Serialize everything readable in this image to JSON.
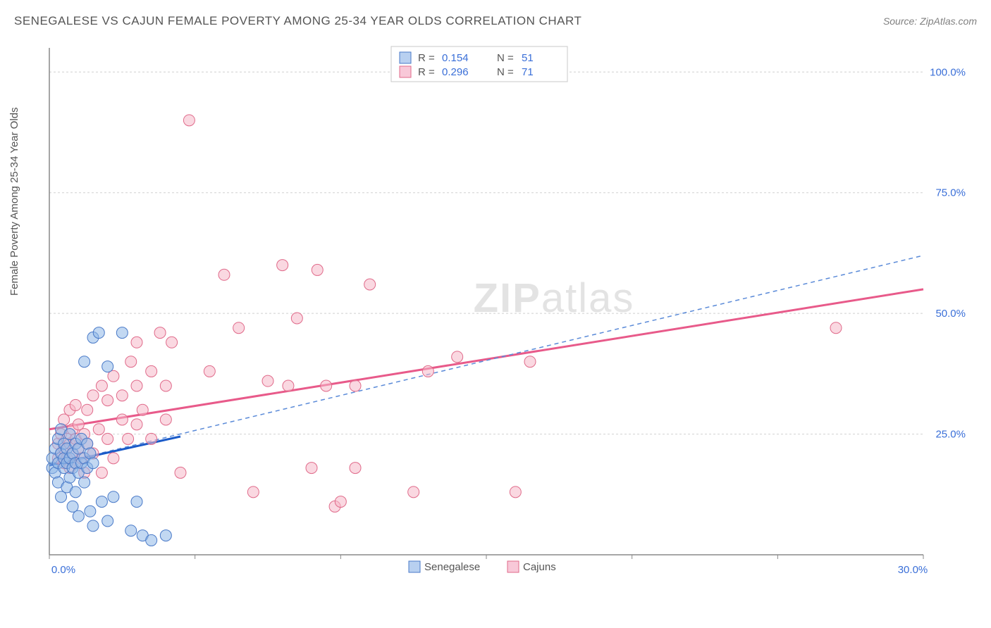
{
  "header": {
    "title": "SENEGALESE VS CAJUN FEMALE POVERTY AMONG 25-34 YEAR OLDS CORRELATION CHART",
    "source_prefix": "Source: ",
    "source": "ZipAtlas.com"
  },
  "chart": {
    "type": "scatter",
    "y_axis_label": "Female Poverty Among 25-34 Year Olds",
    "xlim": [
      0,
      30
    ],
    "ylim": [
      0,
      105
    ],
    "x_ticks": [
      0,
      5,
      10,
      15,
      20,
      25,
      30
    ],
    "x_tick_labels": [
      "0.0%",
      "",
      "",
      "",
      "",
      "",
      "30.0%"
    ],
    "y_ticks": [
      25,
      50,
      75,
      100
    ],
    "y_tick_labels": [
      "25.0%",
      "50.0%",
      "75.0%",
      "100.0%"
    ],
    "background_color": "#ffffff",
    "grid_color": "#d0d0d0",
    "marker_radius": 8,
    "series": {
      "senegalese": {
        "label": "Senegalese",
        "color_fill": "#8fb8e8",
        "color_stroke": "#4a7ac8",
        "R": "0.154",
        "N": "51",
        "points": [
          [
            0.1,
            18
          ],
          [
            0.1,
            20
          ],
          [
            0.2,
            17
          ],
          [
            0.2,
            22
          ],
          [
            0.3,
            15
          ],
          [
            0.3,
            19
          ],
          [
            0.3,
            24
          ],
          [
            0.4,
            12
          ],
          [
            0.4,
            21
          ],
          [
            0.4,
            26
          ],
          [
            0.5,
            18
          ],
          [
            0.5,
            20
          ],
          [
            0.5,
            23
          ],
          [
            0.6,
            14
          ],
          [
            0.6,
            19
          ],
          [
            0.6,
            22
          ],
          [
            0.7,
            16
          ],
          [
            0.7,
            20
          ],
          [
            0.7,
            25
          ],
          [
            0.8,
            10
          ],
          [
            0.8,
            18
          ],
          [
            0.8,
            21
          ],
          [
            0.9,
            13
          ],
          [
            0.9,
            19
          ],
          [
            0.9,
            23
          ],
          [
            1.0,
            8
          ],
          [
            1.0,
            17
          ],
          [
            1.0,
            22
          ],
          [
            1.1,
            19
          ],
          [
            1.1,
            24
          ],
          [
            1.2,
            15
          ],
          [
            1.2,
            20
          ],
          [
            1.2,
            40
          ],
          [
            1.3,
            18
          ],
          [
            1.3,
            23
          ],
          [
            1.4,
            9
          ],
          [
            1.4,
            21
          ],
          [
            1.5,
            6
          ],
          [
            1.5,
            19
          ],
          [
            1.5,
            45
          ],
          [
            1.7,
            46
          ],
          [
            1.8,
            11
          ],
          [
            2.0,
            7
          ],
          [
            2.0,
            39
          ],
          [
            2.2,
            12
          ],
          [
            2.5,
            46
          ],
          [
            2.8,
            5
          ],
          [
            3.0,
            11
          ],
          [
            3.2,
            4
          ],
          [
            3.5,
            3
          ],
          [
            4.0,
            4
          ]
        ],
        "trend_solid": {
          "x1": 0,
          "y1": 18.5,
          "x2": 4.5,
          "y2": 24.5
        },
        "trend_dash": {
          "x1": 0,
          "y1": 18.5,
          "x2": 30,
          "y2": 62
        }
      },
      "cajuns": {
        "label": "Cajuns",
        "color_fill": "#f5b8c8",
        "color_stroke": "#e06a8a",
        "R": "0.296",
        "N": "71",
        "points": [
          [
            0.3,
            20
          ],
          [
            0.3,
            23
          ],
          [
            0.4,
            21
          ],
          [
            0.4,
            25
          ],
          [
            0.5,
            19
          ],
          [
            0.5,
            22
          ],
          [
            0.5,
            28
          ],
          [
            0.6,
            20
          ],
          [
            0.6,
            24
          ],
          [
            0.7,
            18
          ],
          [
            0.7,
            23
          ],
          [
            0.7,
            30
          ],
          [
            0.8,
            21
          ],
          [
            0.8,
            26
          ],
          [
            0.9,
            19
          ],
          [
            0.9,
            24
          ],
          [
            0.9,
            31
          ],
          [
            1.0,
            22
          ],
          [
            1.0,
            27
          ],
          [
            1.1,
            20
          ],
          [
            1.2,
            17
          ],
          [
            1.2,
            25
          ],
          [
            1.3,
            23
          ],
          [
            1.3,
            30
          ],
          [
            1.5,
            21
          ],
          [
            1.5,
            33
          ],
          [
            1.7,
            26
          ],
          [
            1.8,
            17
          ],
          [
            1.8,
            35
          ],
          [
            2.0,
            24
          ],
          [
            2.0,
            32
          ],
          [
            2.2,
            20
          ],
          [
            2.2,
            37
          ],
          [
            2.5,
            28
          ],
          [
            2.5,
            33
          ],
          [
            2.7,
            24
          ],
          [
            2.8,
            40
          ],
          [
            3.0,
            27
          ],
          [
            3.0,
            35
          ],
          [
            3.0,
            44
          ],
          [
            3.2,
            30
          ],
          [
            3.5,
            24
          ],
          [
            3.5,
            38
          ],
          [
            3.8,
            46
          ],
          [
            4.0,
            28
          ],
          [
            4.0,
            35
          ],
          [
            4.2,
            44
          ],
          [
            4.5,
            17
          ],
          [
            4.8,
            90
          ],
          [
            5.5,
            38
          ],
          [
            6.0,
            58
          ],
          [
            6.5,
            47
          ],
          [
            7.0,
            13
          ],
          [
            7.5,
            36
          ],
          [
            8.0,
            60
          ],
          [
            8.2,
            35
          ],
          [
            8.5,
            49
          ],
          [
            9.0,
            18
          ],
          [
            9.2,
            59
          ],
          [
            9.5,
            35
          ],
          [
            9.8,
            10
          ],
          [
            10.0,
            11
          ],
          [
            10.5,
            18
          ],
          [
            10.5,
            35
          ],
          [
            11.0,
            56
          ],
          [
            12.5,
            13
          ],
          [
            13.0,
            38
          ],
          [
            14.0,
            41
          ],
          [
            16.0,
            13
          ],
          [
            16.5,
            40
          ],
          [
            27.0,
            47
          ]
        ],
        "trend": {
          "x1": 0,
          "y1": 26,
          "x2": 30,
          "y2": 55
        }
      }
    },
    "legend_top": {
      "R_label": "R =",
      "N_label": "N ="
    },
    "watermark": {
      "text_bold": "ZIP",
      "text_rest": "atlas"
    }
  }
}
